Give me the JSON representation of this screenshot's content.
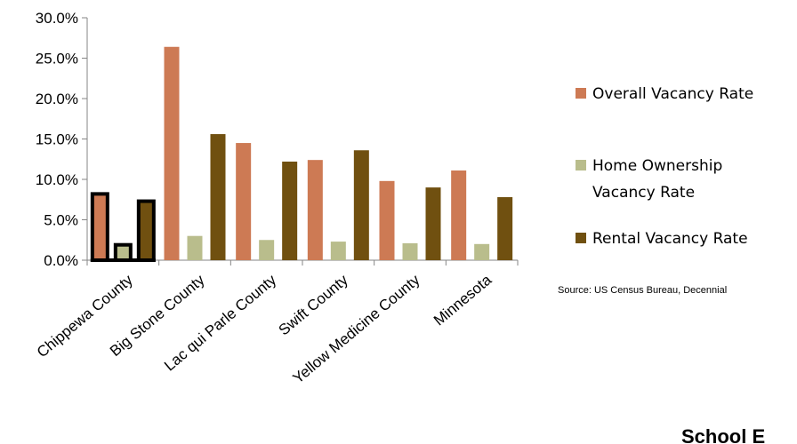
{
  "chart_data": {
    "type": "bar",
    "title": "",
    "xlabel": "",
    "ylabel": "",
    "ylim": [
      0,
      30
    ],
    "y_ticks": [
      "0.0%",
      "5.0%",
      "10.0%",
      "15.0%",
      "20.0%",
      "25.0%",
      "30.0%"
    ],
    "grid": false,
    "legend_position": "right",
    "categories": [
      "Chippewa County",
      "Big Stone County",
      "Lac qui Parle County",
      "Swift County",
      "Yellow Medicine County",
      "Minnesota"
    ],
    "highlighted_category": "Chippewa County",
    "series": [
      {
        "name": "Overall Vacancy Rate",
        "color": "#CD7A54",
        "values": [
          8.2,
          26.4,
          14.5,
          12.4,
          9.8,
          11.1
        ]
      },
      {
        "name": "Home Ownership Vacancy Rate",
        "color": "#B9BD8C",
        "values": [
          1.9,
          3.0,
          2.5,
          2.3,
          2.1,
          2.0
        ]
      },
      {
        "name": "Rental Vacancy Rate",
        "color": "#705010",
        "values": [
          7.3,
          15.6,
          12.2,
          13.6,
          9.0,
          7.8
        ]
      }
    ]
  },
  "legend_labels": {
    "overall": "Overall Vacancy Rate",
    "ownership_line1": "Home Ownership",
    "ownership_line2": "Vacancy Rate",
    "rental": "Rental Vacancy Rate"
  },
  "source_text": "Source: US Census Bureau, Decennial",
  "cropped_heading": "School E"
}
